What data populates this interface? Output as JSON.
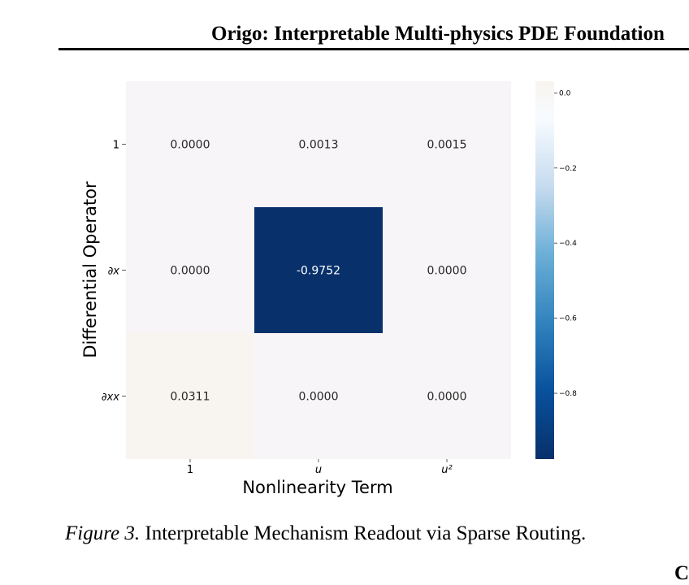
{
  "header": {
    "title": "Origo: Interpretable Multi-physics PDE Foundation"
  },
  "figure": {
    "caption_ref": "Figure 3.",
    "caption_text": "Interpretable Mechanism Readout via Sparse Routing."
  },
  "corner_fragment": "C",
  "chart_data": {
    "type": "heatmap",
    "xlabel": "Nonlinearity Term",
    "ylabel": "Differential Operator",
    "x_categories": [
      "1",
      "u",
      "u²"
    ],
    "y_categories": [
      "1",
      "∂x",
      "∂xx"
    ],
    "values": [
      [
        0.0,
        0.0013,
        0.0015
      ],
      [
        0.0,
        -0.9752,
        0.0
      ],
      [
        0.0311,
        0.0,
        0.0
      ]
    ],
    "cell_labels": [
      [
        "0.0000",
        "0.0013",
        "0.0015"
      ],
      [
        "0.0000",
        "-0.9752",
        "0.0000"
      ],
      [
        "0.0311",
        "0.0000",
        "0.0000"
      ]
    ],
    "colorbar": {
      "colormap": "Blues_r",
      "vmin": -0.9752,
      "vmax": 0.0311,
      "ticks": [
        0.0,
        -0.2,
        -0.4,
        -0.6,
        -0.8
      ],
      "tick_labels": [
        "0.0",
        "−0.2",
        "−0.4",
        "−0.6",
        "−0.8"
      ]
    }
  }
}
